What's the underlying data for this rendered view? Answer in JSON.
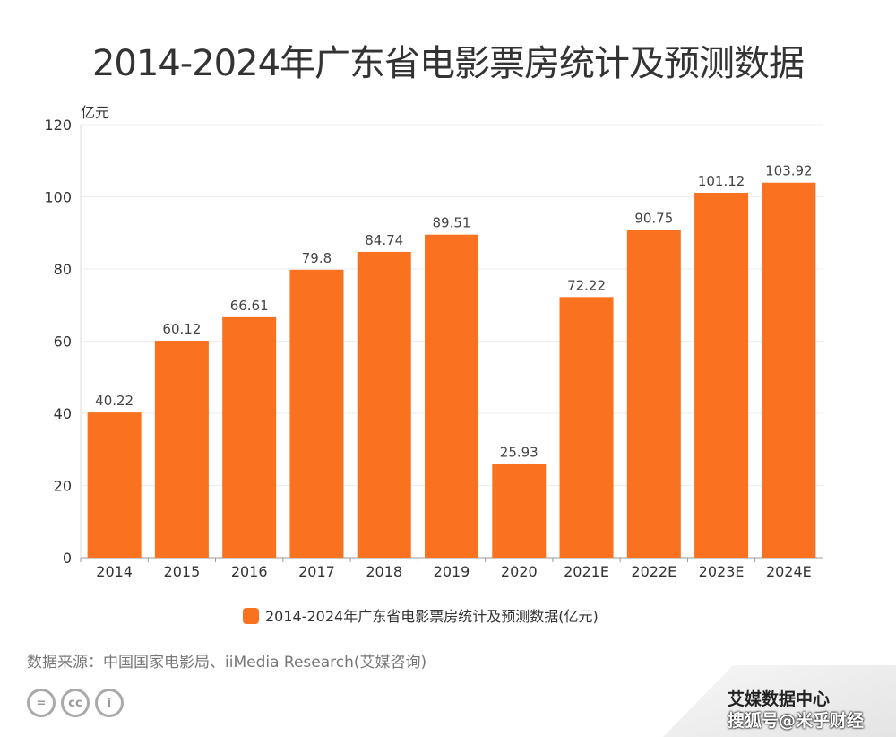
{
  "chart_data": {
    "type": "bar",
    "title": "2014-2024年广东省电影票房统计及预测数据",
    "ylabel": "亿元",
    "ylim": [
      0,
      120
    ],
    "yticks": [
      0,
      20,
      40,
      60,
      80,
      100,
      120
    ],
    "grid": true,
    "legend_position": "bottom",
    "color": "#FA7220",
    "categories": [
      "2014",
      "2015",
      "2016",
      "2017",
      "2018",
      "2019",
      "2020",
      "2021E",
      "2022E",
      "2023E",
      "2024E"
    ],
    "series": [
      {
        "name": "2014-2024年广东省电影票房统计及预测数据(亿元)",
        "values": [
          40.22,
          60.12,
          66.61,
          79.8,
          84.74,
          89.51,
          25.93,
          72.22,
          90.75,
          101.12,
          103.92
        ]
      }
    ]
  },
  "source": "数据来源：中国国家电影局、iiMedia Research(艾媒咨询)",
  "watermark": {
    "line1": "艾媒数据中心",
    "line2": "搜狐号@米乎财经"
  },
  "license_icons": [
    "nd-icon",
    "cc-icon",
    "by-icon"
  ]
}
